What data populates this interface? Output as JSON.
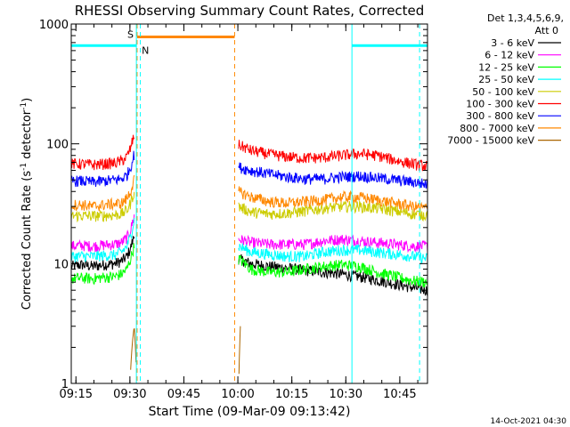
{
  "chart_data": {
    "type": "line",
    "title": "RHESSI Observing Summary Count Rates, Corrected",
    "xlabel": "Start Time (09-Mar-09 09:13:42)",
    "ylabel_main": "Corrected Count Rate (s",
    "ylabel_sup1": "-1",
    "ylabel_mid": " detector",
    "ylabel_sup2": "-1",
    "ylabel_end": ")",
    "yscale": "log",
    "ylim": [
      1,
      1000
    ],
    "xlim_minutes": [
      0,
      99
    ],
    "x_unit": "minutes after 09:13:42",
    "x_ticks": [
      {
        "label": "09:15",
        "min": 1.3
      },
      {
        "label": "09:30",
        "min": 16.3
      },
      {
        "label": "09:45",
        "min": 31.3
      },
      {
        "label": "10:00",
        "min": 46.3
      },
      {
        "label": "10:15",
        "min": 61.3
      },
      {
        "label": "10:30",
        "min": 76.3
      },
      {
        "label": "10:45",
        "min": 91.3
      }
    ],
    "y_ticks": [
      {
        "label": "1000",
        "v": 1000
      },
      {
        "label": "100",
        "v": 100
      },
      {
        "label": "10",
        "v": 10
      },
      {
        "label": "1",
        "v": 1
      }
    ],
    "legend_header": [
      "Det 1,3,4,5,6,9,",
      "Att 0"
    ],
    "legend_position": "right",
    "timestamp": "14-Oct-2021 04:30",
    "series": [
      {
        "name": "3 - 6 keV",
        "color": "#000000",
        "segments": [
          {
            "x": [
              0,
              3,
              6,
              9,
              12,
              14,
              15.5,
              16.5,
              17.5
            ],
            "y": [
              9.5,
              9.8,
              9.5,
              9.8,
              10,
              10.5,
              11.5,
              13.5,
              17
            ]
          },
          {
            "x": [
              46.5,
              50,
              55,
              60,
              65,
              70,
              75,
              80,
              85,
              88,
              90,
              95,
              99
            ],
            "y": [
              11,
              10,
              9.5,
              9.2,
              8.8,
              8.5,
              8.2,
              7.8,
              7.3,
              7,
              6.8,
              6.3,
              6
            ]
          }
        ]
      },
      {
        "name": "6 - 12 keV",
        "color": "#ff00ff",
        "segments": [
          {
            "x": [
              0,
              3,
              6,
              9,
              12,
              14,
              15.5,
              16.5,
              17.5
            ],
            "y": [
              14,
              14.2,
              14,
              14.3,
              14.5,
              15,
              16.5,
              19,
              25
            ]
          },
          {
            "x": [
              46.5,
              50,
              55,
              60,
              65,
              70,
              75,
              80,
              85,
              90,
              95,
              99
            ],
            "y": [
              16,
              15,
              14.5,
              14.5,
              14.5,
              15.5,
              16,
              15.5,
              15,
              14.5,
              14,
              14
            ]
          }
        ]
      },
      {
        "name": "12 - 25 keV",
        "color": "#00ff00",
        "segments": [
          {
            "x": [
              0,
              3,
              6,
              9,
              12,
              14,
              15.5,
              16.5,
              17.5
            ],
            "y": [
              7.5,
              7.6,
              7.5,
              7.7,
              7.8,
              8.2,
              9,
              11,
              14
            ]
          },
          {
            "x": [
              46.5,
              50,
              55,
              60,
              65,
              70,
              75,
              80,
              85,
              90,
              95,
              99
            ],
            "y": [
              11,
              9,
              8.5,
              8.5,
              9,
              9.5,
              9.8,
              9.5,
              8.5,
              7.8,
              7.2,
              7
            ]
          }
        ]
      },
      {
        "name": "25 - 50 keV",
        "color": "#00ffff",
        "segments": [
          {
            "x": [
              0,
              3,
              6,
              9,
              12,
              14,
              15.5,
              16.5,
              17.5
            ],
            "y": [
              11.5,
              11.6,
              11.5,
              11.7,
              11.8,
              12.5,
              14,
              17,
              23
            ]
          },
          {
            "x": [
              46.5,
              50,
              55,
              60,
              65,
              70,
              75,
              80,
              85,
              90,
              95,
              99
            ],
            "y": [
              14,
              12.5,
              12,
              11.5,
              11.5,
              12.5,
              13,
              13,
              12.5,
              12,
              11.5,
              11
            ]
          }
        ]
      },
      {
        "name": "50 - 100 keV",
        "color": "#cccc00",
        "segments": [
          {
            "x": [
              0,
              3,
              6,
              9,
              12,
              14,
              15.5,
              16.5,
              17.5
            ],
            "y": [
              25,
              25.2,
              25,
              25.2,
              25.5,
              26,
              28,
              32,
              40
            ]
          },
          {
            "x": [
              46.5,
              50,
              55,
              60,
              65,
              70,
              75,
              80,
              85,
              90,
              95,
              99
            ],
            "y": [
              30,
              27,
              26,
              26.5,
              27.5,
              29,
              30,
              30,
              29,
              27.5,
              26,
              25.5
            ]
          }
        ]
      },
      {
        "name": "100 - 300 keV",
        "color": "#ff0000",
        "segments": [
          {
            "x": [
              0,
              3,
              6,
              9,
              12,
              14,
              15.5,
              16.5,
              17.5
            ],
            "y": [
              68,
              68,
              67,
              68,
              69,
              72,
              78,
              92,
              118
            ]
          },
          {
            "x": [
              46.5,
              50,
              55,
              60,
              65,
              70,
              75,
              80,
              85,
              90,
              95,
              99
            ],
            "y": [
              98,
              88,
              82,
              78,
              76,
              77,
              80,
              83,
              80,
              73,
              68,
              65
            ]
          }
        ]
      },
      {
        "name": "300 - 800 keV",
        "color": "#0000ff",
        "segments": [
          {
            "x": [
              0,
              3,
              6,
              9,
              12,
              14,
              15.5,
              16.5,
              17.5
            ],
            "y": [
              49,
              49,
              48,
              49,
              50,
              51,
              55,
              64,
              82
            ]
          },
          {
            "x": [
              46.5,
              50,
              55,
              60,
              65,
              70,
              75,
              80,
              85,
              90,
              95,
              99
            ],
            "y": [
              64,
              60,
              56,
              53,
              51,
              51,
              53,
              54,
              52,
              50,
              48,
              46
            ]
          }
        ]
      },
      {
        "name": "800 - 7000 keV",
        "color": "#ff8800",
        "segments": [
          {
            "x": [
              0,
              3,
              6,
              9,
              12,
              14,
              15.5,
              16.5,
              17.5
            ],
            "y": [
              31,
              31,
              30,
              31,
              31.5,
              32,
              35,
              40,
              50
            ]
          },
          {
            "x": [
              46.5,
              50,
              55,
              60,
              65,
              70,
              75,
              80,
              85,
              90,
              95,
              99
            ],
            "y": [
              40,
              36,
              33,
              32,
              33,
              34,
              36,
              36,
              34,
              32,
              30,
              29
            ]
          }
        ]
      },
      {
        "name": "7000 - 15000 keV",
        "color": "#aa6600",
        "segments": [
          {
            "x": [
              16.5,
              17.0,
              17.5,
              18.0
            ],
            "y": [
              1.3,
              2.2,
              3.0,
              1.5
            ]
          },
          {
            "x": [
              46.6,
              46.8,
              47.0
            ],
            "y": [
              1.2,
              2.0,
              3.0
            ]
          }
        ]
      }
    ],
    "saa_flag": {
      "label": "S",
      "color": "#ff8800",
      "start_min": 18.3,
      "end_min": 45.4,
      "level": 780,
      "dashed_line_min": [
        18.3,
        45.4
      ]
    },
    "night_flag": {
      "label": "N",
      "color": "#00ffff",
      "level": 660,
      "spans": [
        [
          0,
          18.1
        ],
        [
          78.0,
          99
        ]
      ],
      "dashed_line_min": [
        19.2,
        96.8
      ],
      "solid_line_min": [
        18.1,
        78.0
      ]
    }
  }
}
